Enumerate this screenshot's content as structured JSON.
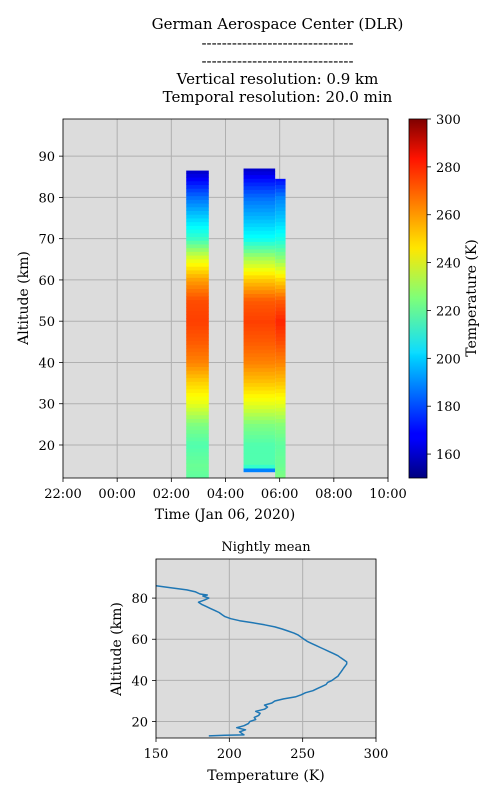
{
  "header": {
    "line1": "German Aerospace Center (DLR)",
    "line2": "------------------------------",
    "line3": "------------------------------",
    "line4": "Vertical resolution: 0.9 km",
    "line5": "Temporal resolution: 20.0 min"
  },
  "chart_data": [
    {
      "type": "heatmap",
      "title": "",
      "xlabel": "Time (Jan 06, 2020)",
      "ylabel": "Altitude (km)",
      "x_tick_labels": [
        "22:00",
        "00:00",
        "02:00",
        "04:00",
        "06:00",
        "08:00",
        "10:00"
      ],
      "y_ticks": [
        20,
        30,
        40,
        50,
        60,
        70,
        80,
        90
      ],
      "ylim": [
        12,
        99
      ],
      "grid": true,
      "colormap": "jet",
      "colorbar": {
        "label": "Temperature (K)",
        "range": [
          150,
          300
        ],
        "ticks": [
          160,
          180,
          200,
          220,
          240,
          260,
          280,
          300
        ]
      },
      "profile_blocks": [
        {
          "start": "02:33",
          "end": "03:23",
          "top_km": 86.5,
          "bottom_km": 12,
          "bottom_temp_K": 220,
          "profile": [
            [
              12,
              220
            ],
            [
              15,
              222
            ],
            [
              20,
              218
            ],
            [
              25,
              225
            ],
            [
              30,
              240
            ],
            [
              35,
              250
            ],
            [
              40,
              262
            ],
            [
              45,
              268
            ],
            [
              50,
              272
            ],
            [
              55,
              270
            ],
            [
              60,
              258
            ],
            [
              65,
              240
            ],
            [
              70,
              215
            ],
            [
              75,
              200
            ],
            [
              80,
              185
            ],
            [
              84,
              170
            ],
            [
              86.5,
              160
            ]
          ]
        },
        {
          "start": "04:40",
          "end": "05:50",
          "top_km": 87,
          "bottom_km": 13.5,
          "bottom_temp_K": 175,
          "profile": [
            [
              13.5,
              175
            ],
            [
              15,
              218
            ],
            [
              20,
              218
            ],
            [
              25,
              225
            ],
            [
              30,
              240
            ],
            [
              35,
              252
            ],
            [
              40,
              262
            ],
            [
              45,
              268
            ],
            [
              50,
              272
            ],
            [
              55,
              268
            ],
            [
              60,
              252
            ],
            [
              65,
              232
            ],
            [
              70,
              208
            ],
            [
              75,
              196
            ],
            [
              80,
              185
            ],
            [
              84,
              172
            ],
            [
              87,
              160
            ]
          ]
        },
        {
          "start": "05:50",
          "end": "06:13",
          "top_km": 84.5,
          "bottom_km": 12,
          "bottom_temp_K": 225,
          "profile": [
            [
              12,
              225
            ],
            [
              15,
              222
            ],
            [
              20,
              220
            ],
            [
              25,
              226
            ],
            [
              30,
              240
            ],
            [
              35,
              252
            ],
            [
              40,
              262
            ],
            [
              45,
              270
            ],
            [
              50,
              276
            ],
            [
              55,
              268
            ],
            [
              60,
              250
            ],
            [
              65,
              228
            ],
            [
              70,
              210
            ],
            [
              75,
              198
            ],
            [
              80,
              188
            ],
            [
              84.5,
              170
            ]
          ]
        }
      ]
    },
    {
      "type": "line",
      "title": "Nightly mean",
      "xlabel": "Temperature (K)",
      "ylabel": "Altitude (km)",
      "xlim": [
        150,
        300
      ],
      "ylim": [
        12,
        99
      ],
      "x_ticks": [
        150,
        200,
        250,
        300
      ],
      "y_ticks": [
        20,
        40,
        60,
        80
      ],
      "grid": true,
      "series": [
        {
          "color": "#1f77b4",
          "points": [
            [
              186,
              13
            ],
            [
              197,
              13.3
            ],
            [
              210,
              13.5
            ],
            [
              209,
              14
            ],
            [
              207,
              15
            ],
            [
              211,
              16
            ],
            [
              205,
              17
            ],
            [
              210,
              18
            ],
            [
              213,
              19
            ],
            [
              214,
              20
            ],
            [
              218,
              21
            ],
            [
              217,
              22
            ],
            [
              220,
              23
            ],
            [
              221,
              24
            ],
            [
              218,
              25
            ],
            [
              224,
              26
            ],
            [
              226,
              27
            ],
            [
              224,
              28
            ],
            [
              229,
              29
            ],
            [
              231,
              30
            ],
            [
              237,
              31
            ],
            [
              245,
              32
            ],
            [
              249,
              33
            ],
            [
              252,
              34
            ],
            [
              257,
              35
            ],
            [
              260,
              36
            ],
            [
              263,
              37
            ],
            [
              266,
              38
            ],
            [
              267,
              39
            ],
            [
              270,
              40
            ],
            [
              272,
              41
            ],
            [
              274,
              42
            ],
            [
              275,
              43
            ],
            [
              276,
              44
            ],
            [
              277,
              45
            ],
            [
              278,
              46
            ],
            [
              279,
              47
            ],
            [
              280,
              48
            ],
            [
              280,
              49
            ],
            [
              278,
              50
            ],
            [
              276,
              51
            ],
            [
              274,
              52
            ],
            [
              271,
              53
            ],
            [
              268,
              54
            ],
            [
              265,
              55
            ],
            [
              262,
              56
            ],
            [
              259,
              57
            ],
            [
              256,
              58
            ],
            [
              253,
              59
            ],
            [
              251,
              60
            ],
            [
              249,
              61
            ],
            [
              247,
              62
            ],
            [
              244,
              63
            ],
            [
              240,
              64
            ],
            [
              236,
              65
            ],
            [
              231,
              66
            ],
            [
              224,
              67
            ],
            [
              216,
              68
            ],
            [
              207,
              69
            ],
            [
              201,
              70
            ],
            [
              197,
              71
            ],
            [
              195,
              72
            ],
            [
              193,
              73
            ],
            [
              190,
              74
            ],
            [
              187,
              75
            ],
            [
              184,
              76
            ],
            [
              181,
              77
            ],
            [
              179,
              78
            ],
            [
              183,
              79
            ],
            [
              186,
              80
            ],
            [
              182,
              81
            ],
            [
              185,
              81.5
            ],
            [
              180,
              82
            ],
            [
              177,
              83
            ],
            [
              171,
              84
            ],
            [
              160,
              85
            ],
            [
              150,
              86
            ]
          ]
        }
      ]
    }
  ]
}
